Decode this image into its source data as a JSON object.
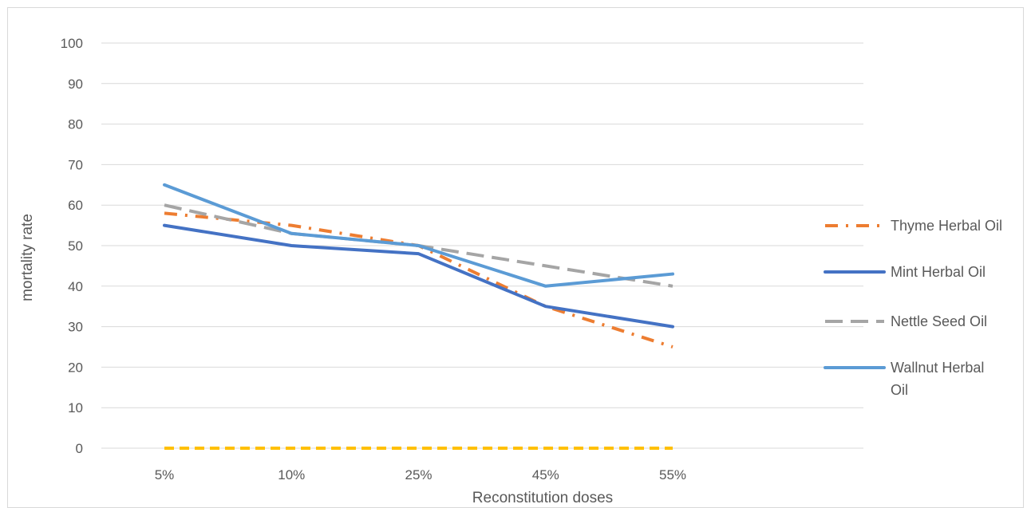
{
  "chart_data": {
    "type": "line",
    "categories": [
      "5%",
      "10%",
      "25%",
      "45%",
      "55%"
    ],
    "xlabel": "Reconstitution doses",
    "ylabel": "mortality rate",
    "ylim": [
      0,
      100
    ],
    "yticks": [
      0,
      10,
      20,
      30,
      40,
      50,
      60,
      70,
      80,
      90,
      100
    ],
    "grid": true,
    "legend_position": "right",
    "series": [
      {
        "name": "Thyme Herbal Oil",
        "values": [
          58,
          55,
          50,
          35,
          25
        ],
        "color": "#ED7D31",
        "dash": "dash-dot",
        "in_legend": true
      },
      {
        "name": "Mint Herbal Oil",
        "values": [
          55,
          50,
          48,
          35,
          30
        ],
        "color": "#4472C4",
        "dash": "solid",
        "in_legend": true
      },
      {
        "name": "Nettle Seed Oil",
        "values": [
          60,
          53,
          50,
          45,
          40
        ],
        "color": "#A5A5A5",
        "dash": "long-dash",
        "in_legend": true
      },
      {
        "name": "Wallnut Herbal Oil",
        "values": [
          65,
          53,
          50,
          40,
          43
        ],
        "color": "#5B9BD5",
        "dash": "solid",
        "in_legend": true
      },
      {
        "name": "",
        "values": [
          0,
          0,
          0,
          0,
          0
        ],
        "color": "#FFC000",
        "dash": "short-dash",
        "in_legend": false
      }
    ]
  }
}
